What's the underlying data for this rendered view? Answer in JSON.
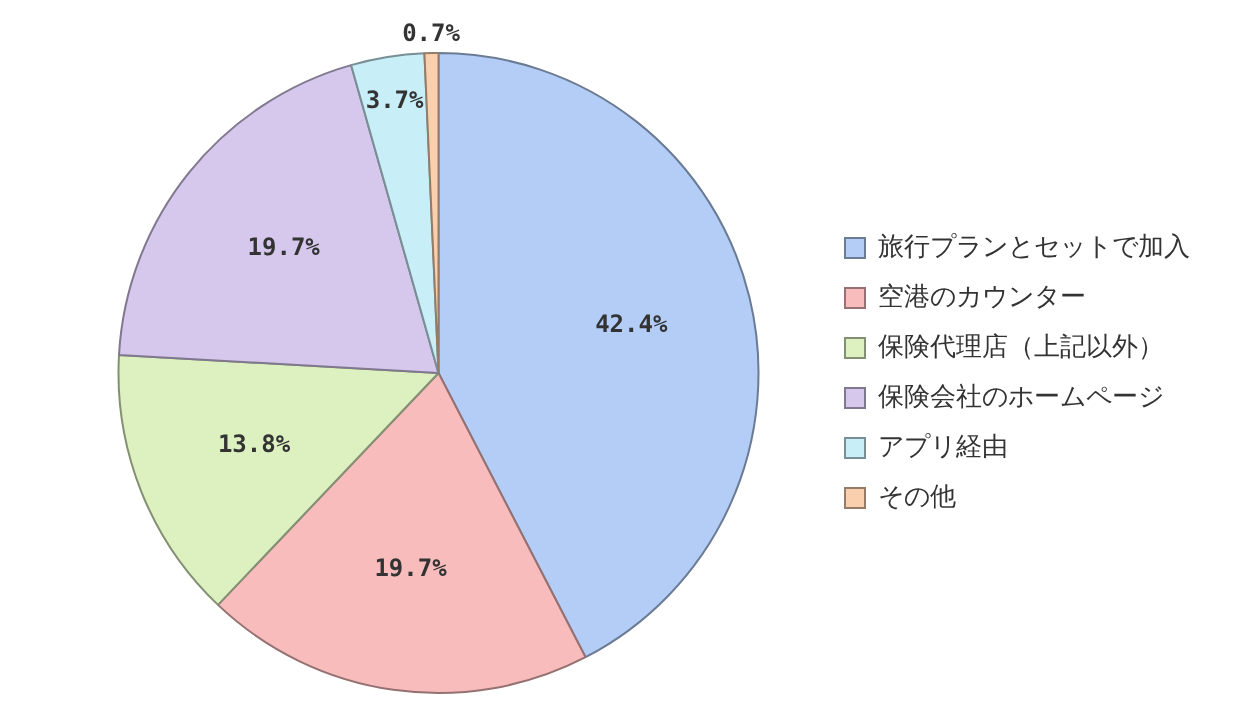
{
  "chart_data": {
    "type": "pie",
    "categories": [
      "旅行プランとセットで加入",
      "空港のカウンター",
      "保険代理店（上記以外）",
      "保険会社のホームページ",
      "アプリ経由",
      "その他"
    ],
    "values": [
      42.4,
      19.7,
      13.8,
      19.7,
      3.7,
      0.7
    ],
    "colors": [
      "#b3cdf7",
      "#f8bcbc",
      "#dcf0c0",
      "#d6c8ec",
      "#c8eef8",
      "#f9cfae"
    ],
    "value_labels": [
      "42.4%",
      "19.7%",
      "13.8%",
      "19.7%",
      "3.7%",
      "0.7%"
    ],
    "legend": "right"
  }
}
